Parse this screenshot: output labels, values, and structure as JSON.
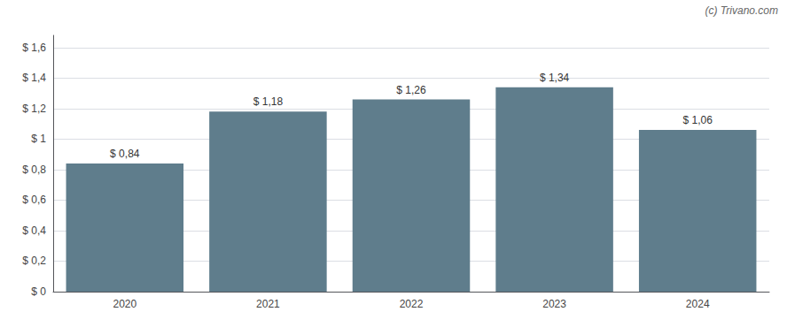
{
  "chart_data": {
    "type": "bar",
    "categories": [
      "2020",
      "2021",
      "2022",
      "2023",
      "2024"
    ],
    "values": [
      0.84,
      1.18,
      1.26,
      1.34,
      1.06
    ],
    "value_labels": [
      "$ 0,84",
      "$ 1,18",
      "$ 1,26",
      "$ 1,34",
      "$ 1,06"
    ],
    "data_labels": true,
    "color": "#5f7d8c",
    "ylim": [
      0,
      1.68
    ],
    "yticks": [
      {
        "value": 0,
        "label": "$ 0"
      },
      {
        "value": 0.2,
        "label": "$ 0,2"
      },
      {
        "value": 0.4,
        "label": "$ 0,4"
      },
      {
        "value": 0.6,
        "label": "$ 0,6"
      },
      {
        "value": 0.8,
        "label": "$ 0,8"
      },
      {
        "value": 1.0,
        "label": "$ 1"
      },
      {
        "value": 1.2,
        "label": "$ 1,2"
      },
      {
        "value": 1.4,
        "label": "$ 1,4"
      },
      {
        "value": 1.6,
        "label": "$ 1,6"
      }
    ],
    "grid": true,
    "annotation": "(c) Trivano.com"
  }
}
